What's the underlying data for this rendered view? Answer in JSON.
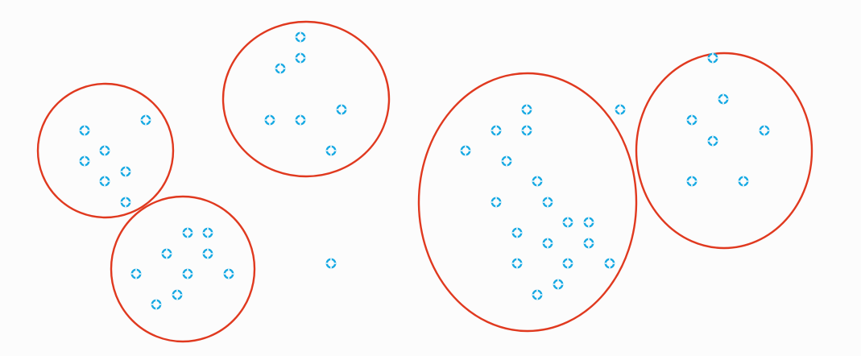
{
  "colors": {
    "background": "#fcfcfc",
    "cluster_outline": "#e0391f",
    "point": "#17a9e3"
  },
  "icons": {
    "point": "ring-plus-marker-icon"
  },
  "clusters": [
    {
      "id": "cluster-1",
      "points": [
        [
          105,
          162
        ],
        [
          181,
          149
        ],
        [
          130,
          187
        ],
        [
          105,
          200
        ],
        [
          156,
          213
        ],
        [
          130,
          225
        ],
        [
          156,
          251
        ]
      ]
    },
    {
      "id": "cluster-2",
      "points": [
        [
          233,
          289
        ],
        [
          258,
          289
        ],
        [
          207,
          315
        ],
        [
          258,
          315
        ],
        [
          169,
          340
        ],
        [
          233,
          340
        ],
        [
          284,
          340
        ],
        [
          220,
          366
        ],
        [
          194,
          378
        ]
      ]
    },
    {
      "id": "cluster-3",
      "points": [
        [
          373,
          46
        ],
        [
          373,
          72
        ],
        [
          348,
          85
        ],
        [
          424,
          136
        ],
        [
          335,
          149
        ],
        [
          373,
          149
        ],
        [
          411,
          187
        ]
      ]
    },
    {
      "id": "cluster-4",
      "points": [
        [
          654,
          136
        ],
        [
          616,
          162
        ],
        [
          654,
          162
        ],
        [
          578,
          187
        ],
        [
          629,
          200
        ],
        [
          667,
          225
        ],
        [
          616,
          251
        ],
        [
          680,
          251
        ],
        [
          705,
          276
        ],
        [
          731,
          276
        ],
        [
          642,
          289
        ],
        [
          680,
          302
        ],
        [
          731,
          302
        ],
        [
          642,
          327
        ],
        [
          705,
          327
        ],
        [
          757,
          327
        ],
        [
          693,
          353
        ],
        [
          667,
          366
        ]
      ]
    },
    {
      "id": "cluster-5",
      "points": [
        [
          885,
          72
        ],
        [
          898,
          123
        ],
        [
          859,
          149
        ],
        [
          949,
          162
        ],
        [
          885,
          175
        ],
        [
          859,
          225
        ],
        [
          923,
          225
        ]
      ]
    }
  ],
  "outlier_points": [
    [
      770,
      136
    ],
    [
      411,
      327
    ]
  ]
}
